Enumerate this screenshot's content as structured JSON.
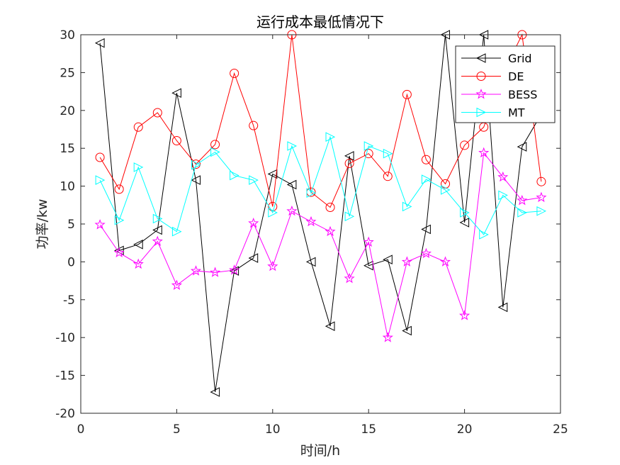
{
  "chart_data": {
    "type": "line",
    "title": "运行成本最低情况下",
    "xlabel": "时间/h",
    "ylabel": "功率/kw",
    "xlim": [
      0,
      25
    ],
    "ylim": [
      -20,
      30
    ],
    "xticks": [
      0,
      5,
      10,
      15,
      20,
      25
    ],
    "yticks": [
      -20,
      -15,
      -10,
      -5,
      0,
      5,
      10,
      15,
      20,
      25,
      30
    ],
    "grid": false,
    "legend_position": "top-right",
    "x": [
      1,
      2,
      3,
      4,
      5,
      6,
      7,
      8,
      9,
      10,
      11,
      12,
      13,
      14,
      15,
      16,
      17,
      18,
      19,
      20,
      21,
      22,
      23,
      24
    ],
    "series": [
      {
        "name": "Grid",
        "color": "#000000",
        "marker": "triangle-left",
        "values": [
          28.9,
          1.5,
          2.3,
          4.2,
          22.3,
          10.8,
          -17.2,
          -1.2,
          0.5,
          11.6,
          10.2,
          0.0,
          -8.5,
          14.0,
          -0.5,
          0.3,
          -9.1,
          4.3,
          30.0,
          5.2,
          30.0,
          -6.0,
          15.2,
          19.5
        ]
      },
      {
        "name": "DE",
        "color": "#ff0000",
        "marker": "circle",
        "values": [
          13.8,
          9.6,
          17.8,
          19.7,
          16.0,
          12.9,
          15.5,
          24.9,
          18.0,
          7.3,
          30.0,
          9.2,
          7.2,
          13.0,
          14.3,
          11.3,
          22.1,
          13.5,
          10.3,
          15.4,
          17.8,
          24.9,
          30.0,
          10.6
        ]
      },
      {
        "name": "BESS",
        "color": "#ff00ff",
        "marker": "star",
        "values": [
          4.9,
          1.2,
          -0.3,
          2.7,
          -3.1,
          -1.2,
          -1.4,
          -1.1,
          5.1,
          -0.6,
          6.7,
          5.3,
          4.0,
          -2.2,
          2.6,
          -10.0,
          0.0,
          1.1,
          0.0,
          -7.1,
          14.4,
          11.2,
          8.1,
          8.5
        ]
      },
      {
        "name": "MT",
        "color": "#00ffff",
        "marker": "triangle-right",
        "values": [
          10.8,
          5.5,
          12.5,
          5.7,
          4.0,
          12.8,
          14.5,
          11.4,
          10.8,
          6.5,
          15.3,
          9.1,
          16.5,
          6.0,
          15.3,
          14.3,
          7.3,
          10.9,
          9.5,
          6.5,
          3.6,
          8.8,
          6.5,
          6.7
        ]
      }
    ]
  }
}
